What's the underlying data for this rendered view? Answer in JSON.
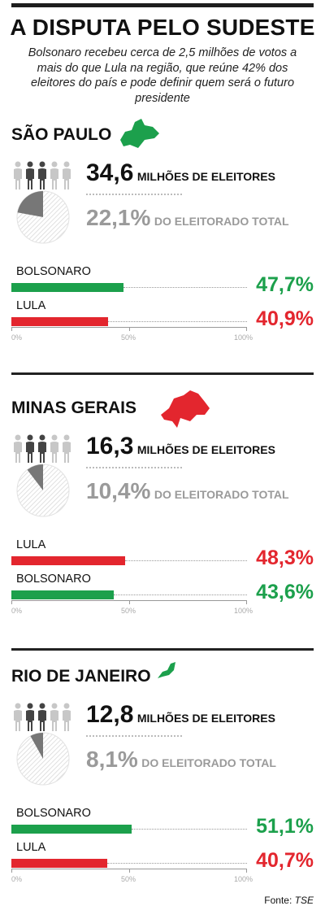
{
  "title": "A DISPUTA PELO SUDESTE",
  "subtitle": "Bolsonaro recebeu cerca de 2,5 milhões de votos a mais do que Lula na região, que reúne 42% dos eleitores do país e pode definir quem será o futuro presidente",
  "footer": {
    "label": "Fonte:",
    "source": "TSE"
  },
  "colors": {
    "bolsonaro": "#1ca04c",
    "lula": "#e3262e",
    "text": "#111111",
    "muted": "#9a9a9a",
    "pie_light": "#d8d8d8",
    "pie_dark": "#777777"
  },
  "icons": {
    "voters": "people-silhouettes-icon",
    "map": "state-map-icon"
  },
  "chart_data": [
    {
      "type": "bar",
      "state": "SÃO PAULO",
      "voters_millions": "34,6",
      "voters_label": "MILHÕES DE ELEITORES",
      "share_pct": "22,1%",
      "share_label": "DO ELEITORADO TOTAL",
      "share_value": 22.1,
      "xlim": [
        0,
        100
      ],
      "ticks": [
        "0%",
        "50%",
        "100%"
      ],
      "series": [
        {
          "name": "BOLSONARO",
          "value": 47.7,
          "label": "47,7%",
          "color_key": "bolsonaro"
        },
        {
          "name": "LULA",
          "value": 40.9,
          "label": "40,9%",
          "color_key": "lula"
        }
      ]
    },
    {
      "type": "bar",
      "state": "MINAS GERAIS",
      "voters_millions": "16,3",
      "voters_label": "MILHÕES DE ELEITORES",
      "share_pct": "10,4%",
      "share_label": "DO ELEITORADO TOTAL",
      "share_value": 10.4,
      "xlim": [
        0,
        100
      ],
      "ticks": [
        "0%",
        "50%",
        "100%"
      ],
      "series": [
        {
          "name": "LULA",
          "value": 48.3,
          "label": "48,3%",
          "color_key": "lula"
        },
        {
          "name": "BOLSONARO",
          "value": 43.6,
          "label": "43,6%",
          "color_key": "bolsonaro"
        }
      ]
    },
    {
      "type": "bar",
      "state": "RIO DE JANEIRO",
      "voters_millions": "12,8",
      "voters_label": "MILHÕES DE ELEITORES",
      "share_pct": "8,1%",
      "share_label": "DO ELEITORADO TOTAL",
      "share_value": 8.1,
      "xlim": [
        0,
        100
      ],
      "ticks": [
        "0%",
        "50%",
        "100%"
      ],
      "series": [
        {
          "name": "BOLSONARO",
          "value": 51.1,
          "label": "51,1%",
          "color_key": "bolsonaro"
        },
        {
          "name": "LULA",
          "value": 40.7,
          "label": "40,7%",
          "color_key": "lula"
        }
      ]
    }
  ]
}
